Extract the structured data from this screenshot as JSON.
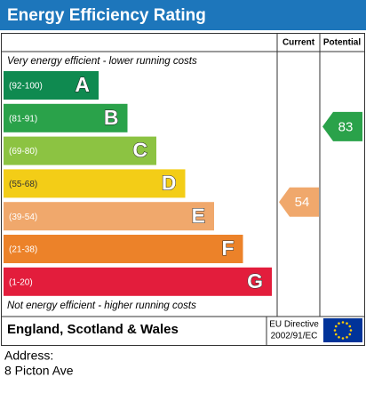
{
  "header": {
    "title": "Energy Efficiency Rating"
  },
  "columns": {
    "current": "Current",
    "potential": "Potential"
  },
  "top_note": "Very energy efficient - lower running costs",
  "bands": [
    {
      "range": "(92-100)",
      "letter": "A",
      "color": "#0f8a50"
    },
    {
      "range": "(81-91)",
      "letter": "B",
      "color": "#2aa24a"
    },
    {
      "range": "(69-80)",
      "letter": "C",
      "color": "#8cc342"
    },
    {
      "range": "(55-68)",
      "letter": "D",
      "color": "#f3cd17"
    },
    {
      "range": "(39-54)",
      "letter": "E",
      "color": "#f0a86c"
    },
    {
      "range": "(21-38)",
      "letter": "F",
      "color": "#ec8229"
    },
    {
      "range": "(1-20)",
      "letter": "G",
      "color": "#e31d3c"
    }
  ],
  "bottom_note": "Not energy efficient - higher running costs",
  "ratings": {
    "current": 54,
    "potential": 83
  },
  "footer": {
    "region": "England, Scotland & Wales",
    "directive": [
      "EU Directive",
      "2002/91/EC"
    ]
  },
  "address": {
    "label": "Address:",
    "value": "8 Picton Ave"
  }
}
